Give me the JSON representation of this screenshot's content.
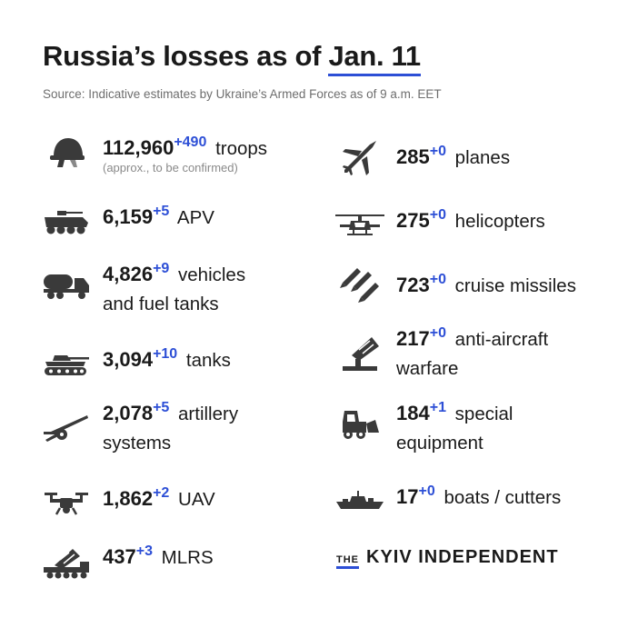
{
  "header": {
    "title_main": "Russia’s losses as of",
    "title_date": "Jan. 11",
    "source": "Source: Indicative estimates by Ukraine’s Armed Forces as of 9 a.m. EET"
  },
  "left": [
    {
      "value": "112,960",
      "delta": "+490",
      "label": "troops",
      "note": "(approx., to be confirmed)",
      "icon": "helmet-icon"
    },
    {
      "value": "6,159",
      "delta": "+5",
      "label": "APV",
      "icon": "apv-icon"
    },
    {
      "value": "4,826",
      "delta": "+9",
      "label": "vehicles",
      "label2": "and fuel tanks",
      "icon": "fuel-truck-icon"
    },
    {
      "value": "3,094",
      "delta": "+10",
      "label": "tanks",
      "icon": "tank-icon"
    },
    {
      "value": "2,078",
      "delta": "+5",
      "label": "artillery",
      "label2": "systems",
      "icon": "artillery-icon"
    },
    {
      "value": "1,862",
      "delta": "+2",
      "label": "UAV",
      "icon": "drone-icon"
    },
    {
      "value": "437",
      "delta": "+3",
      "label": "MLRS",
      "icon": "mlrs-icon"
    }
  ],
  "right": [
    {
      "value": "285",
      "delta": "+0",
      "label": "planes",
      "icon": "plane-icon"
    },
    {
      "value": "275",
      "delta": "+0",
      "label": "helicopters",
      "icon": "helicopter-icon"
    },
    {
      "value": "723",
      "delta": "+0",
      "label": "cruise missiles",
      "icon": "missiles-icon"
    },
    {
      "value": "217",
      "delta": "+0",
      "label": "anti-aircraft",
      "label2": "warfare",
      "icon": "anti-aircraft-icon"
    },
    {
      "value": "184",
      "delta": "+1",
      "label": "special",
      "label2": "equipment",
      "icon": "loader-icon"
    },
    {
      "value": "17",
      "delta": "+0",
      "label": "boats / cutters",
      "icon": "ship-icon"
    }
  ],
  "brand": {
    "the": "THE",
    "name": "KYIV INDEPENDENT"
  },
  "colors": {
    "accent": "#2d4fd6",
    "icon": "#3a3a3a",
    "text": "#1a1a1a",
    "muted": "#6e6e6e"
  }
}
